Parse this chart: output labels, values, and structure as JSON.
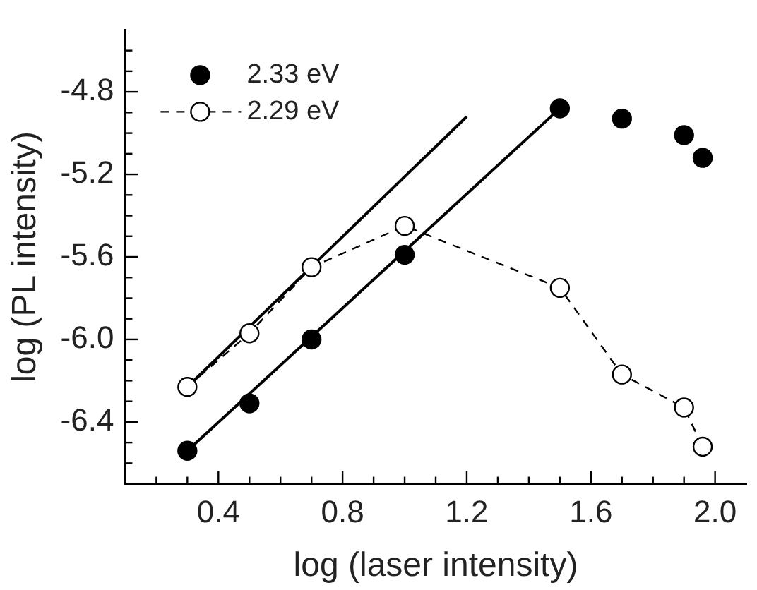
{
  "chart_data": {
    "type": "scatter",
    "xlabel": "log (laser intensity)",
    "ylabel": "log (PL intensity)",
    "xlim": [
      0.1,
      2.1
    ],
    "ylim": [
      -6.7,
      -4.5
    ],
    "xticks": [
      {
        "value": 0.2,
        "label": null
      },
      {
        "value": 0.3,
        "label": null
      },
      0.4,
      {
        "value": 0.5,
        "label": null
      },
      {
        "value": 0.6,
        "label": null
      },
      {
        "value": 0.7,
        "label": null
      },
      0.8,
      {
        "value": 0.9,
        "label": null
      },
      {
        "value": 1.0,
        "label": null
      },
      {
        "value": 1.1,
        "label": null
      },
      1.2,
      {
        "value": 1.3,
        "label": null
      },
      {
        "value": 1.4,
        "label": null
      },
      {
        "value": 1.5,
        "label": null
      },
      1.6,
      {
        "value": 1.7,
        "label": null
      },
      {
        "value": 1.8,
        "label": null
      },
      {
        "value": 1.9,
        "label": null
      },
      {
        "value": 2.0,
        "label": "2.0"
      }
    ],
    "yticks": [
      {
        "value": -6.6,
        "label": null
      },
      {
        "value": -6.5,
        "label": null
      },
      -6.4,
      {
        "value": -6.3,
        "label": null
      },
      {
        "value": -6.2,
        "label": null
      },
      {
        "value": -6.1,
        "label": null
      },
      {
        "value": -6.0,
        "label": "-6.0"
      },
      {
        "value": -5.9,
        "label": null
      },
      {
        "value": -5.8,
        "label": null
      },
      {
        "value": -5.7,
        "label": null
      },
      -5.6,
      {
        "value": -5.5,
        "label": null
      },
      {
        "value": -5.4,
        "label": null
      },
      {
        "value": -5.3,
        "label": null
      },
      -5.2,
      {
        "value": -5.1,
        "label": null
      },
      {
        "value": -5.0,
        "label": null
      },
      {
        "value": -4.9,
        "label": null
      },
      -4.8,
      {
        "value": -4.7,
        "label": null
      },
      {
        "value": -4.6,
        "label": null
      }
    ],
    "grid": false,
    "legend": "top left",
    "series": [
      {
        "name": "2.33 eV",
        "type": "scatter",
        "marker": "circle",
        "color": "#000000",
        "x": [
          0.3,
          0.5,
          0.7,
          1.0,
          1.5,
          1.7,
          1.9,
          1.96
        ],
        "values": [
          -6.54,
          -6.31,
          -6.0,
          -5.59,
          -4.88,
          -4.93,
          -5.01,
          -5.12
        ]
      },
      {
        "name": "2.29 eV",
        "type": "line",
        "marker": "circle",
        "line_style": "dashed",
        "color": "#000000",
        "x": [
          0.3,
          0.5,
          0.7,
          1.0,
          1.5,
          1.7,
          1.9,
          1.96
        ],
        "values": [
          -6.23,
          -5.97,
          -5.65,
          -5.45,
          -5.75,
          -6.17,
          -6.33,
          -6.52
        ]
      },
      {
        "type": "line",
        "marker": "none",
        "line_style": "solid",
        "color": "#000000",
        "x": [
          0.3,
          1.2
        ],
        "values": [
          -6.23,
          -4.92
        ]
      },
      {
        "type": "line",
        "marker": "none",
        "line_style": "solid",
        "color": "#000000",
        "x": [
          0.3,
          1.5
        ],
        "values": [
          -6.54,
          -4.88
        ]
      }
    ]
  }
}
